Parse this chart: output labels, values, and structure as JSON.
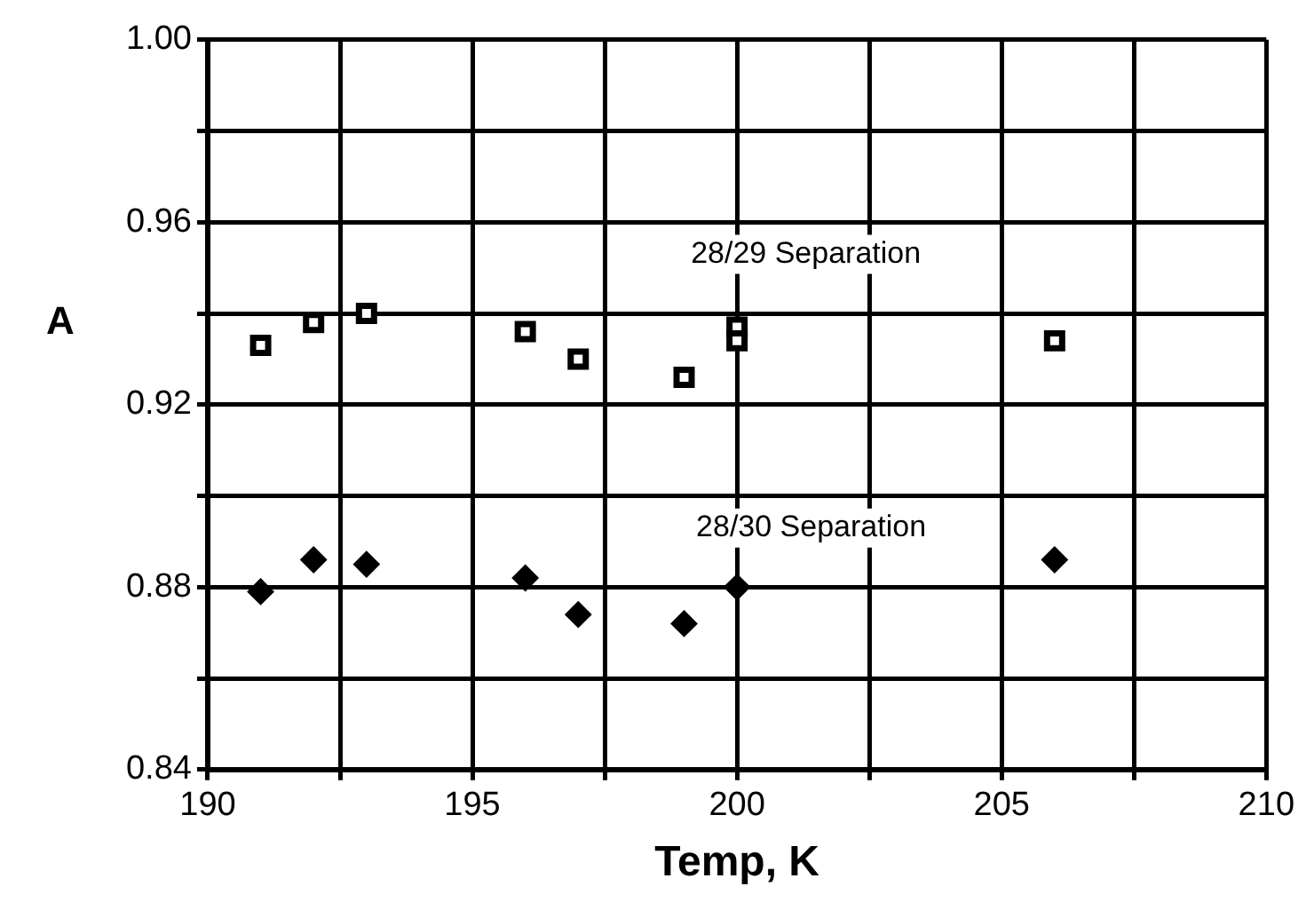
{
  "chart_data": {
    "type": "scatter",
    "xlabel": "Temp, K",
    "ylabel": "A",
    "x": [
      191,
      192,
      193,
      196,
      197,
      199,
      200,
      200,
      206
    ],
    "series": [
      {
        "color": "#000000",
        "marker": "square",
        "values": [
          0.933,
          0.938,
          0.94,
          0.936,
          0.93,
          0.926,
          0.937,
          0.934,
          0.934
        ]
      },
      {
        "color": "#000000",
        "marker": "diamond",
        "x": [
          191,
          192,
          193,
          196,
          197,
          199,
          200,
          206
        ],
        "values": [
          0.879,
          0.886,
          0.885,
          0.882,
          0.874,
          0.872,
          0.88,
          0.886
        ]
      }
    ],
    "annotations": [
      "28/29 Separation",
      "28/30 Separation"
    ],
    "xlim": [
      190,
      210
    ],
    "xticks": [
      190,
      {
        "value": 192.5,
        "label": null
      },
      195,
      {
        "value": 197.5,
        "label": null
      },
      200,
      {
        "value": 202.5,
        "label": null
      },
      205,
      {
        "value": 207.5,
        "label": null
      },
      210
    ],
    "ylim": [
      0.84,
      1.0
    ],
    "yticks": [
      {
        "value": 0.84,
        "label": "0.84"
      },
      {
        "value": 0.86,
        "label": null
      },
      {
        "value": 0.88,
        "label": "0.88"
      },
      {
        "value": 0.9,
        "label": null
      },
      {
        "value": 0.92,
        "label": "0.92"
      },
      {
        "value": 0.94,
        "label": null
      },
      {
        "value": 0.96,
        "label": "0.96"
      },
      {
        "value": 0.98,
        "label": null
      },
      {
        "value": 1.0,
        "label": "1.00"
      }
    ],
    "grid": true,
    "legend": false
  }
}
